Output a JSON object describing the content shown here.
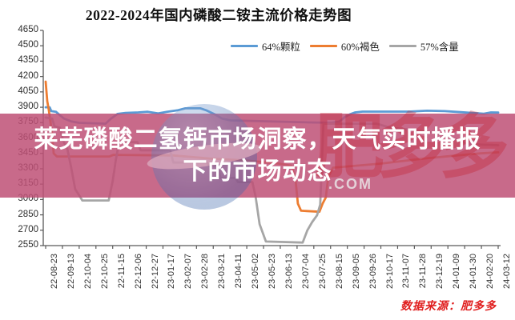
{
  "title": "2022-2024年国内磷酸二铵主流价格走势图",
  "legend": [
    {
      "label": "64%颗粒",
      "color": "#5b9bd5"
    },
    {
      "label": "60%褐色",
      "color": "#ed7d31"
    },
    {
      "label": "57%含量",
      "color": "#a6a6a6"
    }
  ],
  "overlay": {
    "line1": "莱芜磷酸二氢钙市场洞察，天气实时播报",
    "line2": "下的市场动态"
  },
  "source": "数据来源：肥多多",
  "watermark": {
    "brand": "肥多多",
    "com": ".COM"
  },
  "colors": {
    "axis": "#595959",
    "banner": "#be5076",
    "source_text": "#e01f1f"
  },
  "chart_data": {
    "type": "line",
    "title": "2022-2024年国内磷酸二铵主流价格走势图",
    "xlabel": "",
    "ylabel": "",
    "ylim": [
      2550,
      4650
    ],
    "y_tick_step": 150,
    "grid": false,
    "legend_position": "top-right",
    "x_labels": [
      "22-08-23",
      "22-09-13",
      "22-10-04",
      "22-10-25",
      "22-11-15",
      "22-12-06",
      "22-12-27",
      "23-01-17",
      "23-02-07",
      "23-02-28",
      "23-03-21",
      "23-04-11",
      "23-05-02",
      "23-05-23",
      "23-06-13",
      "23-07-04",
      "23-07-25",
      "23-08-15",
      "23-09-05",
      "23-09-26",
      "23-10-17",
      "23-11-07",
      "23-11-28",
      "23-12-19",
      "24-01-09",
      "24-01-30",
      "24-02-20",
      "24-03-12"
    ],
    "x_interval_days": 21,
    "x_range_days": [
      0,
      567
    ],
    "series": [
      {
        "name": "64%颗粒",
        "color": "#5b9bd5",
        "points": [
          [
            0,
            3900
          ],
          [
            5,
            3900
          ],
          [
            7,
            3862
          ],
          [
            13,
            3855
          ],
          [
            18,
            3822
          ],
          [
            23,
            3790
          ],
          [
            32,
            3762
          ],
          [
            42,
            3748
          ],
          [
            75,
            3740
          ],
          [
            82,
            3790
          ],
          [
            90,
            3835
          ],
          [
            100,
            3845
          ],
          [
            116,
            3850
          ],
          [
            128,
            3856
          ],
          [
            141,
            3840
          ],
          [
            152,
            3856
          ],
          [
            166,
            3872
          ],
          [
            175,
            3890
          ],
          [
            194,
            3890
          ],
          [
            202,
            3868
          ],
          [
            212,
            3830
          ],
          [
            221,
            3790
          ],
          [
            232,
            3772
          ],
          [
            278,
            3762
          ],
          [
            330,
            3752
          ],
          [
            358,
            3748
          ],
          [
            368,
            3760
          ],
          [
            374,
            3800
          ],
          [
            381,
            3830
          ],
          [
            388,
            3850
          ],
          [
            397,
            3858
          ],
          [
            455,
            3858
          ],
          [
            478,
            3866
          ],
          [
            500,
            3862
          ],
          [
            520,
            3852
          ],
          [
            538,
            3843
          ],
          [
            549,
            3837
          ],
          [
            558,
            3850
          ],
          [
            567,
            3848
          ]
        ]
      },
      {
        "name": "60%褐色",
        "color": "#ed7d31",
        "points": [
          [
            0,
            4150
          ],
          [
            2,
            3960
          ],
          [
            4,
            3870
          ],
          [
            6,
            3760
          ],
          [
            8,
            3640
          ],
          [
            10,
            3450
          ],
          [
            14,
            3420
          ],
          [
            80,
            3420
          ],
          [
            85,
            3435
          ],
          [
            160,
            3430
          ],
          [
            205,
            3400
          ],
          [
            252,
            3380
          ],
          [
            292,
            3350
          ],
          [
            308,
            3330
          ],
          [
            313,
            3200
          ],
          [
            316,
            2960
          ],
          [
            320,
            2890
          ],
          [
            343,
            2880
          ],
          [
            347,
            2960
          ],
          [
            351,
            3020
          ],
          [
            354,
            3220
          ],
          [
            360,
            3310
          ],
          [
            420,
            3350
          ],
          [
            475,
            3400
          ],
          [
            515,
            3430
          ],
          [
            545,
            3450
          ],
          [
            567,
            3460
          ]
        ]
      },
      {
        "name": "57%含量",
        "color": "#a6a6a6",
        "points": [
          [
            0,
            3800
          ],
          [
            8,
            3790
          ],
          [
            11,
            3715
          ],
          [
            18,
            3700
          ],
          [
            22,
            3570
          ],
          [
            27,
            3500
          ],
          [
            32,
            3310
          ],
          [
            37,
            3100
          ],
          [
            42,
            3040
          ],
          [
            46,
            2990
          ],
          [
            79,
            2990
          ],
          [
            84,
            3180
          ],
          [
            88,
            3390
          ],
          [
            92,
            3560
          ],
          [
            115,
            3560
          ],
          [
            119,
            3480
          ],
          [
            156,
            3480
          ],
          [
            160,
            3360
          ],
          [
            202,
            3360
          ],
          [
            205,
            3330
          ],
          [
            216,
            3330
          ],
          [
            219,
            3210
          ],
          [
            238,
            3210
          ],
          [
            241,
            3170
          ],
          [
            259,
            3170
          ],
          [
            263,
            3030
          ],
          [
            268,
            2760
          ],
          [
            276,
            2590
          ],
          [
            322,
            2580
          ],
          [
            328,
            2700
          ],
          [
            334,
            2780
          ],
          [
            340,
            2845
          ],
          [
            344,
            2950
          ],
          [
            348,
            3740
          ],
          [
            415,
            3740
          ],
          [
            432,
            3700
          ],
          [
            460,
            3680
          ],
          [
            488,
            3650
          ],
          [
            502,
            3620
          ],
          [
            518,
            3575
          ],
          [
            530,
            3540
          ],
          [
            567,
            3530
          ]
        ]
      }
    ]
  }
}
